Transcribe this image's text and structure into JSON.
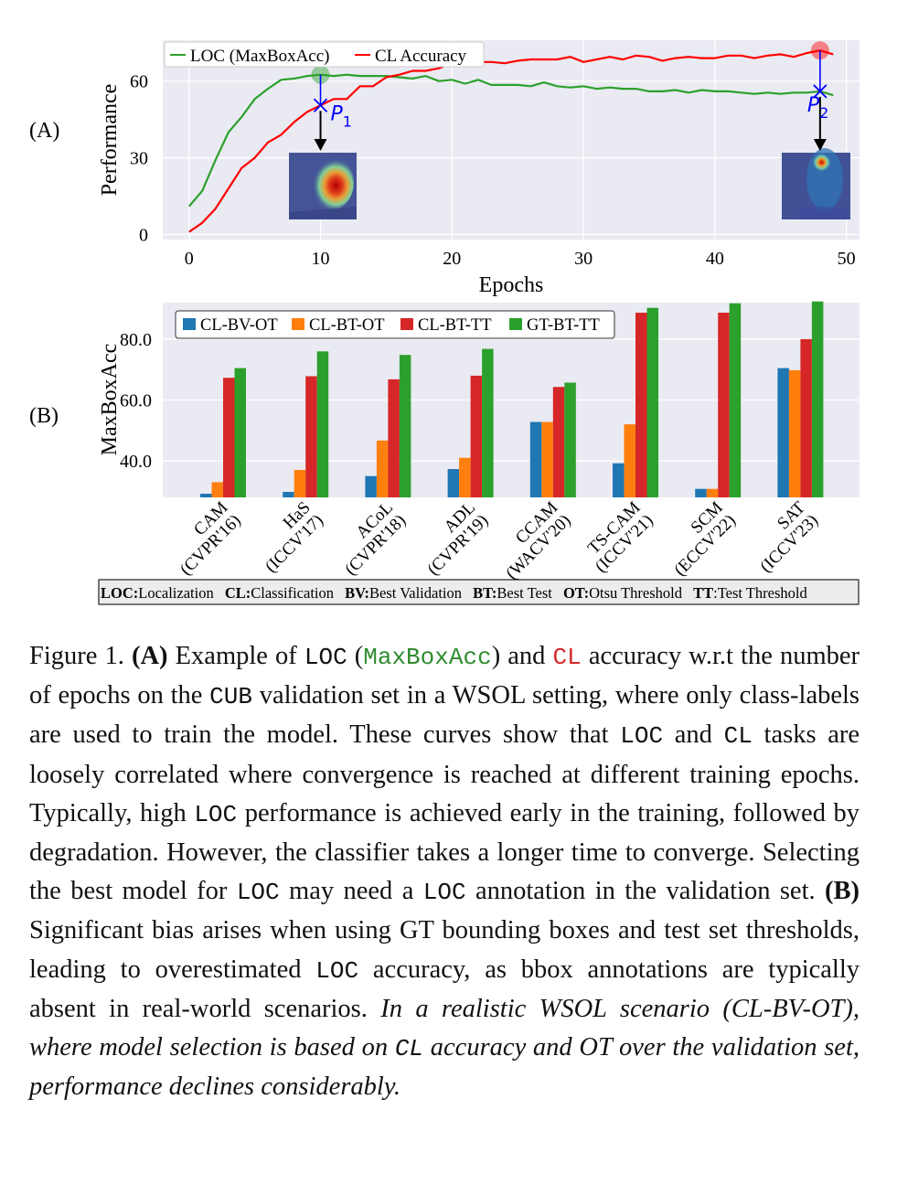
{
  "chart_data": [
    {
      "type": "line",
      "panel_label": "(A)",
      "xlabel": "Epochs",
      "ylabel": "Performance",
      "xlim": [
        -2,
        51
      ],
      "ylim": [
        -2,
        76
      ],
      "x_ticks": [
        "0",
        "10",
        "20",
        "30",
        "40",
        "50"
      ],
      "y_ticks": [
        "0",
        "30",
        "60"
      ],
      "grid": true,
      "legend_position": "top-left",
      "series": [
        {
          "name": "LOC (MaxBoxAcc)",
          "color": "#2ca02c",
          "x": [
            0,
            1,
            2,
            3,
            4,
            5,
            6,
            7,
            8,
            9,
            10,
            11,
            12,
            13,
            14,
            15,
            16,
            17,
            18,
            19,
            20,
            21,
            22,
            23,
            24,
            25,
            26,
            27,
            28,
            29,
            30,
            31,
            32,
            33,
            34,
            35,
            36,
            37,
            38,
            39,
            40,
            41,
            42,
            43,
            44,
            45,
            46,
            47,
            48,
            49
          ],
          "y": [
            11,
            17,
            29,
            40,
            46,
            53,
            57,
            60.5,
            61,
            62,
            62.5,
            62,
            62.5,
            62,
            62,
            62,
            61.5,
            61,
            62,
            60,
            60.5,
            59,
            60.5,
            58.5,
            58.5,
            58.5,
            58,
            59.5,
            58,
            57.5,
            58,
            57,
            57.5,
            57,
            57,
            56,
            56,
            56.5,
            55.5,
            56.5,
            56,
            56,
            55.5,
            55,
            55.5,
            55,
            55.5,
            55.5,
            56,
            54.5
          ]
        },
        {
          "name": "CL Accuracy",
          "color": "#ff0000",
          "x": [
            0,
            1,
            2,
            3,
            4,
            5,
            6,
            7,
            8,
            9,
            10,
            11,
            12,
            13,
            14,
            15,
            16,
            17,
            18,
            19,
            20,
            21,
            22,
            23,
            24,
            25,
            26,
            27,
            28,
            29,
            30,
            31,
            32,
            33,
            34,
            35,
            36,
            37,
            38,
            39,
            40,
            41,
            42,
            43,
            44,
            45,
            46,
            47,
            48,
            49
          ],
          "y": [
            1,
            4.5,
            10,
            18,
            26,
            30,
            36,
            39,
            44,
            48,
            50.5,
            53,
            53,
            58,
            58,
            61.5,
            62.5,
            64,
            64,
            65,
            67,
            67,
            67.5,
            67.5,
            67,
            68,
            68.5,
            68.5,
            68.5,
            69.5,
            67.5,
            68.5,
            69.5,
            68.5,
            70,
            69.5,
            68,
            69,
            69.5,
            69,
            69,
            70,
            70,
            69,
            70,
            70.5,
            69.5,
            71,
            72,
            70.5
          ]
        }
      ],
      "markers": [
        {
          "label": "P",
          "subscript": "1",
          "x": 10,
          "y": 50.5,
          "circle_y": 62.5,
          "circle_color": "#2ca02c"
        },
        {
          "label": "P",
          "subscript": "2",
          "x": 48,
          "y": 56,
          "circle_y": 72,
          "circle_color": "#ff0000"
        }
      ]
    },
    {
      "type": "bar",
      "panel_label": "(B)",
      "ylabel": "MaxBoxAcc",
      "ylim": [
        28,
        92
      ],
      "y_ticks": [
        "40.0",
        "60.0",
        "80.0"
      ],
      "grid": true,
      "legend_position": "top-left",
      "categories": [
        "CAM\n(CVPR'16)",
        "HaS\n(ICCV'17)",
        "ACoL\n(CVPR'18)",
        "ADL\n(CVPR'19)",
        "CCAM\n(WACV'20)",
        "TS-CAM\n(ICCV'21)",
        "SCM\n(ECCV'22)",
        "SAT\n(ICCV'23)"
      ],
      "series": [
        {
          "name": "CL-BV-OT",
          "color": "#1f77b4",
          "values": [
            29.2,
            29.8,
            35,
            37.3,
            52.8,
            39.2,
            30.8,
            70.5
          ]
        },
        {
          "name": "CL-BT-OT",
          "color": "#ff7f0e",
          "values": [
            33,
            37,
            46.7,
            41,
            52.8,
            52,
            30.8,
            69.8
          ]
        },
        {
          "name": "CL-BT-TT",
          "color": "#d62728",
          "values": [
            67.3,
            67.8,
            66.8,
            68,
            64.3,
            88.7,
            88.7,
            80
          ]
        },
        {
          "name": "GT-BT-TT",
          "color": "#2ca02c",
          "values": [
            70.5,
            76,
            74.8,
            76.8,
            65.7,
            90.3,
            91.8,
            92.4
          ]
        }
      ]
    }
  ],
  "panel_a": {
    "label": "(A)",
    "ylabel": "Performance",
    "xlabel": "Epochs",
    "y_ticks": [
      "0",
      "30",
      "60"
    ],
    "x_ticks": [
      "0",
      "10",
      "20",
      "30",
      "40",
      "50"
    ],
    "legend": [
      "LOC (MaxBoxAcc)",
      "CL Accuracy"
    ],
    "p1_label": "P",
    "p1_sub": "1",
    "p2_label": "P",
    "p2_sub": "2"
  },
  "panel_b": {
    "label": "(B)",
    "ylabel": "MaxBoxAcc",
    "y_ticks": [
      "40.0",
      "60.0",
      "80.0"
    ],
    "legend": [
      "CL-BV-OT",
      "CL-BT-OT",
      "CL-BT-TT",
      "GT-BT-TT"
    ],
    "tick_line1": [
      "CAM",
      "HaS",
      "ACoL",
      "ADL",
      "CCAM",
      "TS-CAM",
      "SCM",
      "SAT"
    ],
    "tick_line2": [
      "(CVPR'16)",
      "(ICCV'17)",
      "(CVPR'18)",
      "(CVPR'19)",
      "(WACV'20)",
      "(ICCV'21)",
      "(ECCV'22)",
      "(ICCV'23)"
    ]
  },
  "abbrev_box": {
    "items": [
      {
        "key": "LOC:",
        "value": "Localization"
      },
      {
        "key": "CL:",
        "value": "Classification"
      },
      {
        "key": "BV:",
        "value": "Best Validation"
      },
      {
        "key": "BT:",
        "value": "Best Test"
      },
      {
        "key": "OT:",
        "value": "Otsu Threshold"
      },
      {
        "key": "TT",
        "value": ":Test Threshold"
      }
    ]
  },
  "caption": {
    "fig": "Figure 1.",
    "a_label": "(A)",
    "s1": "Example of",
    "loc": "LOC",
    "maxboxacc": "MaxBoxAcc",
    "s2": "and",
    "cl": "CL",
    "s3": "accuracy w.r.t the number of epochs on the",
    "cub": "CUB",
    "s4": "validation set in a WSOL setting, where only class-labels are used to train the model. These curves show that",
    "s5": "and",
    "s6": "tasks are loosely correlated where convergence is reached at different training epochs.  Typically, high",
    "s7": "performance is achieved early in the training, followed by degradation. However, the classifier takes a longer time to converge.  Selecting the best model for",
    "s8": "may need a",
    "s9": "annotation in the validation set.",
    "b_label": "(B)",
    "s10": "Significant bias arises when using GT bounding boxes and test set thresholds, leading to overestimated",
    "s11": "accuracy, as bbox annotations are typically absent in real-world scenarios.",
    "it1": "In a realistic WSOL scenario (CL-BV-OT), where model selection is based on",
    "it2": "accuracy and OT over the validation set, performance declines considerably."
  }
}
